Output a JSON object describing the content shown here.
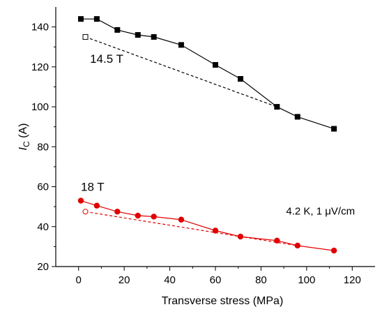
{
  "chart_data": {
    "type": "line",
    "title": "",
    "xlabel": "Transverse stress (MPa)",
    "ylabel_main": "I",
    "ylabel_sub": "C",
    "ylabel_unit": " (A)",
    "xlim": [
      -10,
      130
    ],
    "ylim": [
      20,
      150
    ],
    "x_ticks": [
      0,
      20,
      40,
      60,
      80,
      100,
      120
    ],
    "y_ticks": [
      20,
      40,
      60,
      80,
      100,
      120,
      140
    ],
    "grid": false,
    "series": [
      {
        "label": "14.5 T",
        "color": "#000000",
        "marker": "filled-square",
        "x": [
          1,
          8,
          17,
          26,
          33,
          45,
          60,
          71,
          87,
          96,
          112
        ],
        "y": [
          144,
          144,
          138.5,
          136,
          135,
          131,
          121,
          114,
          100,
          95,
          89
        ]
      },
      {
        "label": "",
        "color": "#000000",
        "marker": "open-square",
        "dashed": true,
        "x": [
          3,
          87
        ],
        "y": [
          135,
          100
        ]
      },
      {
        "label": "18 T",
        "color": "#e00000",
        "marker": "filled-circle",
        "x": [
          1,
          8,
          17,
          26,
          33,
          45,
          60,
          71,
          87,
          96,
          112
        ],
        "y": [
          53,
          50.5,
          47.5,
          45.5,
          45,
          43.5,
          38,
          35,
          33,
          30.5,
          28
        ]
      },
      {
        "label": "",
        "color": "#e00000",
        "marker": "open-circle",
        "dashed": true,
        "x": [
          3,
          71,
          96
        ],
        "y": [
          47.5,
          35,
          30.5
        ]
      }
    ],
    "annotations": [
      {
        "text": "14.5 T",
        "x": 5,
        "y": 122
      },
      {
        "text": "18 T",
        "x": 1,
        "y": 58
      },
      {
        "text": "4.2 K, 1 μV/cm",
        "x": 91,
        "y": 46
      }
    ]
  }
}
